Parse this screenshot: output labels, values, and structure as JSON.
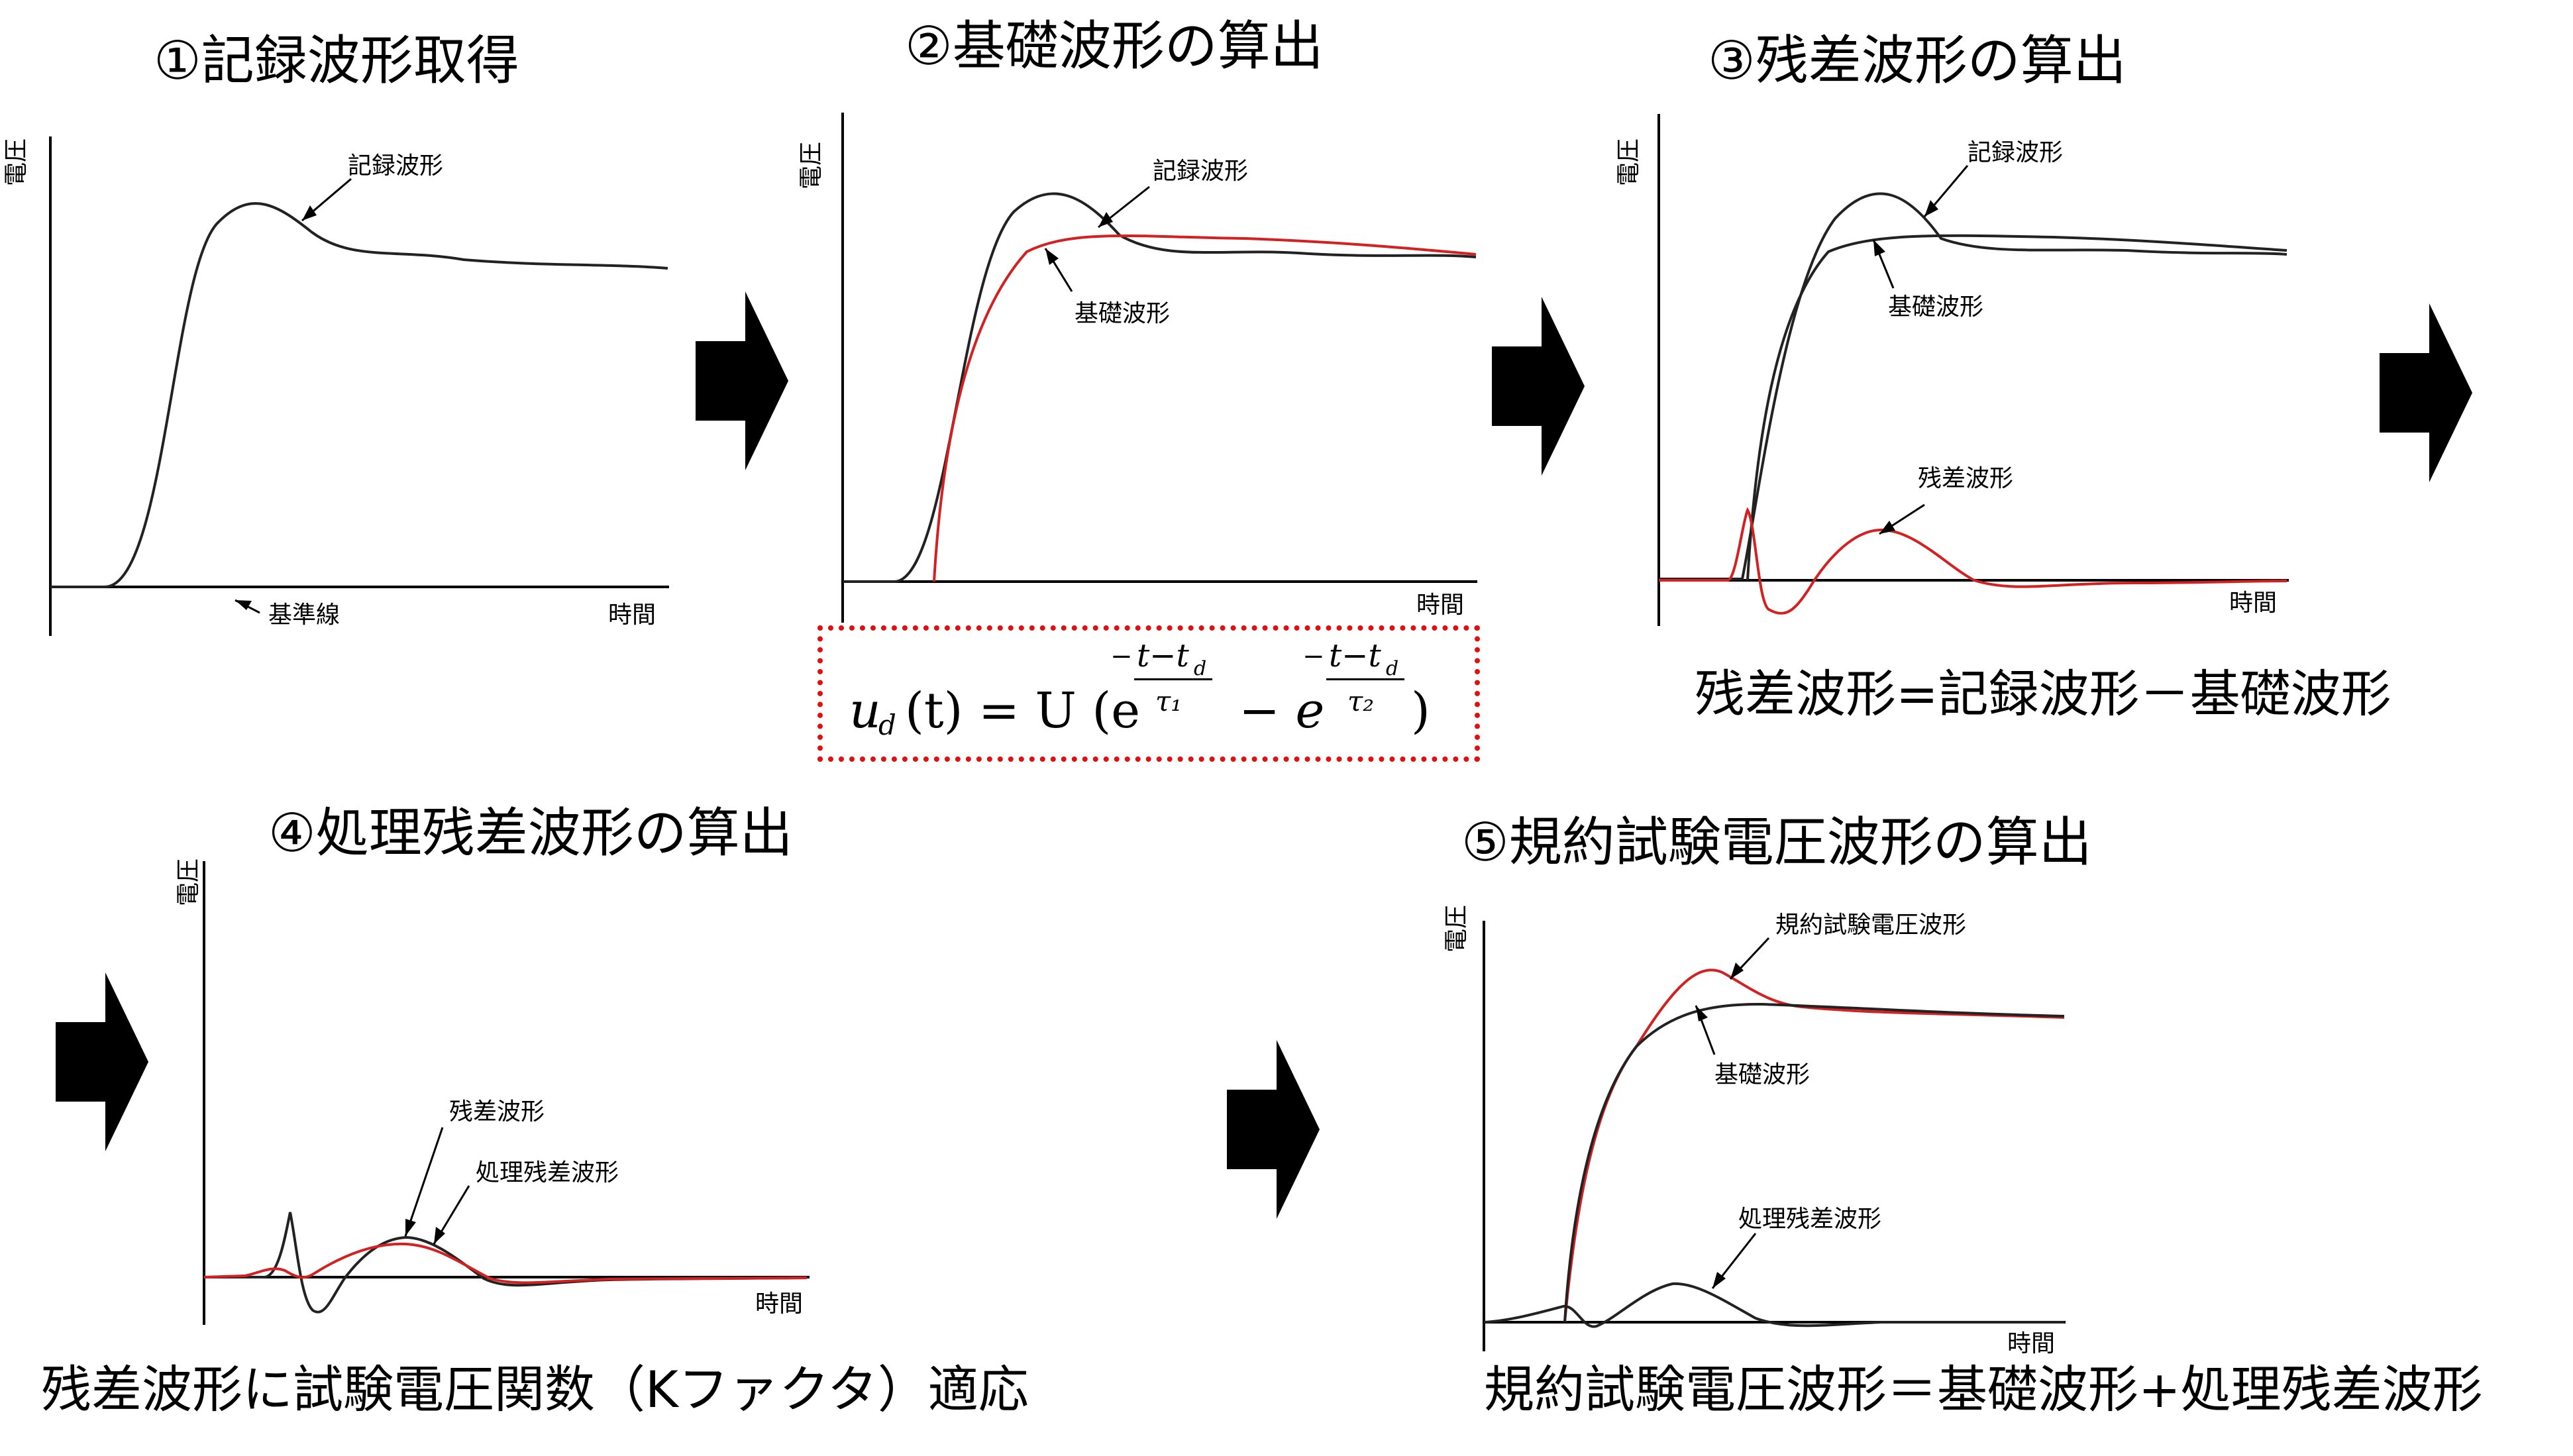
{
  "steps": [
    {
      "title": "①記録波形取得"
    },
    {
      "title": "②基礎波形の算出"
    },
    {
      "title": "③残差波形の算出"
    },
    {
      "title": "④処理残差波形の算出"
    },
    {
      "title": "⑤規約試験電圧波形の算出"
    }
  ],
  "axes": {
    "y_label": "電圧",
    "x_label": "時間"
  },
  "labels": {
    "recorded": "記録波形",
    "baseline": "基準線",
    "base": "基礎波形",
    "residual": "残差波形",
    "processed_residual": "処理残差波形",
    "test_voltage": "規約試験電圧波形"
  },
  "formula": {
    "lhs": "u",
    "lhs_sub": "d",
    "lhs_arg": "(t) = U (e",
    "exp1_num": "t−t",
    "exp1_num_sub": "d",
    "exp1_den": "τ₁",
    "mid": "− e",
    "exp2_num": "t−t",
    "exp2_num_sub": "d",
    "exp2_den": "τ₂",
    "close": ")",
    "minus": "−"
  },
  "captions": {
    "step3": "残差波形=記録波形－基礎波形",
    "step4": "残差波形に試験電圧関数（Kファクタ）適応",
    "step5": "規約試験電圧波形＝基礎波形+処理残差波形"
  },
  "colors": {
    "accent": "#d42020",
    "curve": "#222222"
  }
}
